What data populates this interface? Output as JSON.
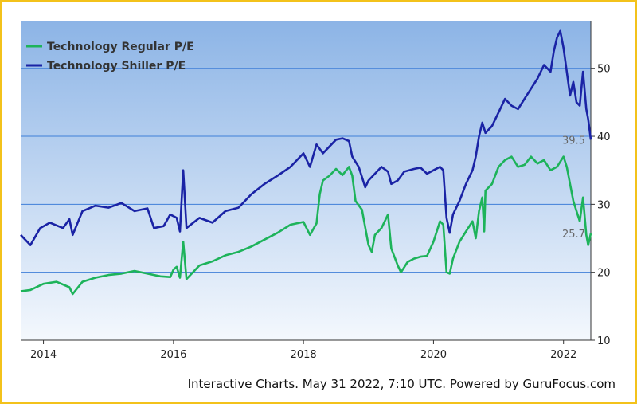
{
  "colors": {
    "regular": "#1db35a",
    "shiller": "#1a23a5",
    "grid": "#3f7fd8",
    "frame": "#f3c21b",
    "bg_top": "#8cb4e6",
    "bg_bottom": "#f4f8fd"
  },
  "footer": "Interactive Charts. May 31 2022, 7:10 UTC. Powered by GuruFocus.com",
  "chart_data": {
    "type": "line",
    "title": "",
    "xlabel": "",
    "ylabel": "",
    "xlim": [
      2013.65,
      2022.42
    ],
    "ylim": [
      10,
      57
    ],
    "x_ticks": [
      2014,
      2016,
      2018,
      2020,
      2022
    ],
    "x_tick_labels": [
      "2014",
      "2016",
      "2018",
      "2020",
      "2022"
    ],
    "y_ticks": [
      10,
      20,
      30,
      40,
      50
    ],
    "y_tick_labels": [
      "10",
      "20",
      "30",
      "40",
      "50"
    ],
    "grid": "horizontal",
    "legend_placement": "top-left",
    "series": [
      {
        "name": "Technology Regular P/E",
        "color": "#1db35a",
        "end_label": "25.7",
        "end_value": 25.7,
        "points": [
          [
            2013.65,
            17.2
          ],
          [
            2013.8,
            17.4
          ],
          [
            2014.0,
            18.3
          ],
          [
            2014.2,
            18.6
          ],
          [
            2014.4,
            17.8
          ],
          [
            2014.45,
            16.8
          ],
          [
            2014.6,
            18.6
          ],
          [
            2014.8,
            19.2
          ],
          [
            2015.0,
            19.6
          ],
          [
            2015.2,
            19.8
          ],
          [
            2015.4,
            20.2
          ],
          [
            2015.6,
            19.8
          ],
          [
            2015.8,
            19.4
          ],
          [
            2015.95,
            19.3
          ],
          [
            2016.0,
            20.4
          ],
          [
            2016.05,
            20.8
          ],
          [
            2016.1,
            19.2
          ],
          [
            2016.15,
            24.5
          ],
          [
            2016.2,
            19.0
          ],
          [
            2016.4,
            21.0
          ],
          [
            2016.6,
            21.6
          ],
          [
            2016.8,
            22.5
          ],
          [
            2017.0,
            23.0
          ],
          [
            2017.2,
            23.8
          ],
          [
            2017.4,
            24.8
          ],
          [
            2017.6,
            25.8
          ],
          [
            2017.8,
            27.0
          ],
          [
            2018.0,
            27.4
          ],
          [
            2018.1,
            25.5
          ],
          [
            2018.2,
            27.2
          ],
          [
            2018.25,
            31.5
          ],
          [
            2018.3,
            33.5
          ],
          [
            2018.4,
            34.2
          ],
          [
            2018.5,
            35.2
          ],
          [
            2018.6,
            34.3
          ],
          [
            2018.7,
            35.5
          ],
          [
            2018.75,
            34.2
          ],
          [
            2018.8,
            30.5
          ],
          [
            2018.9,
            29.2
          ],
          [
            2019.0,
            24.0
          ],
          [
            2019.05,
            23.0
          ],
          [
            2019.1,
            25.5
          ],
          [
            2019.2,
            26.5
          ],
          [
            2019.3,
            28.5
          ],
          [
            2019.35,
            23.5
          ],
          [
            2019.45,
            21.0
          ],
          [
            2019.5,
            20.0
          ],
          [
            2019.6,
            21.5
          ],
          [
            2019.7,
            22.0
          ],
          [
            2019.8,
            22.3
          ],
          [
            2019.9,
            22.4
          ],
          [
            2020.0,
            24.5
          ],
          [
            2020.1,
            27.5
          ],
          [
            2020.15,
            27.0
          ],
          [
            2020.2,
            20.0
          ],
          [
            2020.25,
            19.8
          ],
          [
            2020.3,
            22.0
          ],
          [
            2020.4,
            24.5
          ],
          [
            2020.5,
            26.0
          ],
          [
            2020.6,
            27.5
          ],
          [
            2020.65,
            25.0
          ],
          [
            2020.7,
            29.0
          ],
          [
            2020.75,
            31.0
          ],
          [
            2020.78,
            26.0
          ],
          [
            2020.8,
            32.0
          ],
          [
            2020.9,
            33.0
          ],
          [
            2021.0,
            35.5
          ],
          [
            2021.1,
            36.5
          ],
          [
            2021.2,
            37.0
          ],
          [
            2021.3,
            35.5
          ],
          [
            2021.4,
            35.8
          ],
          [
            2021.5,
            37.0
          ],
          [
            2021.6,
            36.0
          ],
          [
            2021.7,
            36.5
          ],
          [
            2021.8,
            35.0
          ],
          [
            2021.9,
            35.5
          ],
          [
            2022.0,
            37.0
          ],
          [
            2022.05,
            35.5
          ],
          [
            2022.1,
            33.0
          ],
          [
            2022.15,
            30.5
          ],
          [
            2022.2,
            29.0
          ],
          [
            2022.25,
            27.5
          ],
          [
            2022.3,
            31.0
          ],
          [
            2022.35,
            25.5
          ],
          [
            2022.38,
            24.0
          ],
          [
            2022.42,
            25.7
          ]
        ]
      },
      {
        "name": "Technology Shiller P/E",
        "color": "#1a23a5",
        "end_label": "39.5",
        "end_value": 39.5,
        "points": [
          [
            2013.65,
            25.5
          ],
          [
            2013.8,
            24.0
          ],
          [
            2013.95,
            26.5
          ],
          [
            2014.1,
            27.3
          ],
          [
            2014.3,
            26.5
          ],
          [
            2014.4,
            27.8
          ],
          [
            2014.45,
            25.5
          ],
          [
            2014.6,
            29.0
          ],
          [
            2014.8,
            29.8
          ],
          [
            2015.0,
            29.5
          ],
          [
            2015.2,
            30.2
          ],
          [
            2015.4,
            29.0
          ],
          [
            2015.6,
            29.4
          ],
          [
            2015.7,
            26.5
          ],
          [
            2015.85,
            26.8
          ],
          [
            2015.95,
            28.5
          ],
          [
            2016.05,
            28.0
          ],
          [
            2016.1,
            26.0
          ],
          [
            2016.15,
            35.0
          ],
          [
            2016.2,
            26.5
          ],
          [
            2016.4,
            28.0
          ],
          [
            2016.6,
            27.3
          ],
          [
            2016.8,
            29.0
          ],
          [
            2017.0,
            29.5
          ],
          [
            2017.2,
            31.5
          ],
          [
            2017.4,
            33.0
          ],
          [
            2017.6,
            34.2
          ],
          [
            2017.8,
            35.5
          ],
          [
            2017.9,
            36.5
          ],
          [
            2018.0,
            37.5
          ],
          [
            2018.1,
            35.5
          ],
          [
            2018.2,
            38.8
          ],
          [
            2018.3,
            37.5
          ],
          [
            2018.4,
            38.5
          ],
          [
            2018.5,
            39.5
          ],
          [
            2018.6,
            39.7
          ],
          [
            2018.7,
            39.3
          ],
          [
            2018.75,
            37.0
          ],
          [
            2018.85,
            35.5
          ],
          [
            2018.95,
            32.5
          ],
          [
            2019.0,
            33.5
          ],
          [
            2019.1,
            34.5
          ],
          [
            2019.2,
            35.5
          ],
          [
            2019.3,
            34.8
          ],
          [
            2019.35,
            33.0
          ],
          [
            2019.45,
            33.5
          ],
          [
            2019.55,
            34.8
          ],
          [
            2019.7,
            35.2
          ],
          [
            2019.8,
            35.4
          ],
          [
            2019.9,
            34.5
          ],
          [
            2020.0,
            35.0
          ],
          [
            2020.1,
            35.5
          ],
          [
            2020.15,
            35.0
          ],
          [
            2020.2,
            28.0
          ],
          [
            2020.25,
            25.8
          ],
          [
            2020.3,
            28.5
          ],
          [
            2020.4,
            30.5
          ],
          [
            2020.5,
            33.0
          ],
          [
            2020.6,
            35.0
          ],
          [
            2020.65,
            37.0
          ],
          [
            2020.7,
            40.0
          ],
          [
            2020.75,
            42.0
          ],
          [
            2020.8,
            40.5
          ],
          [
            2020.9,
            41.5
          ],
          [
            2021.0,
            43.5
          ],
          [
            2021.1,
            45.5
          ],
          [
            2021.2,
            44.5
          ],
          [
            2021.3,
            44.0
          ],
          [
            2021.4,
            45.5
          ],
          [
            2021.5,
            47.0
          ],
          [
            2021.6,
            48.5
          ],
          [
            2021.7,
            50.5
          ],
          [
            2021.8,
            49.5
          ],
          [
            2021.85,
            52.5
          ],
          [
            2021.9,
            54.5
          ],
          [
            2021.95,
            55.5
          ],
          [
            2022.0,
            53.0
          ],
          [
            2022.05,
            49.5
          ],
          [
            2022.1,
            46.0
          ],
          [
            2022.15,
            48.0
          ],
          [
            2022.2,
            45.0
          ],
          [
            2022.25,
            44.5
          ],
          [
            2022.3,
            49.5
          ],
          [
            2022.35,
            44.0
          ],
          [
            2022.38,
            42.5
          ],
          [
            2022.42,
            39.5
          ]
        ]
      }
    ]
  }
}
